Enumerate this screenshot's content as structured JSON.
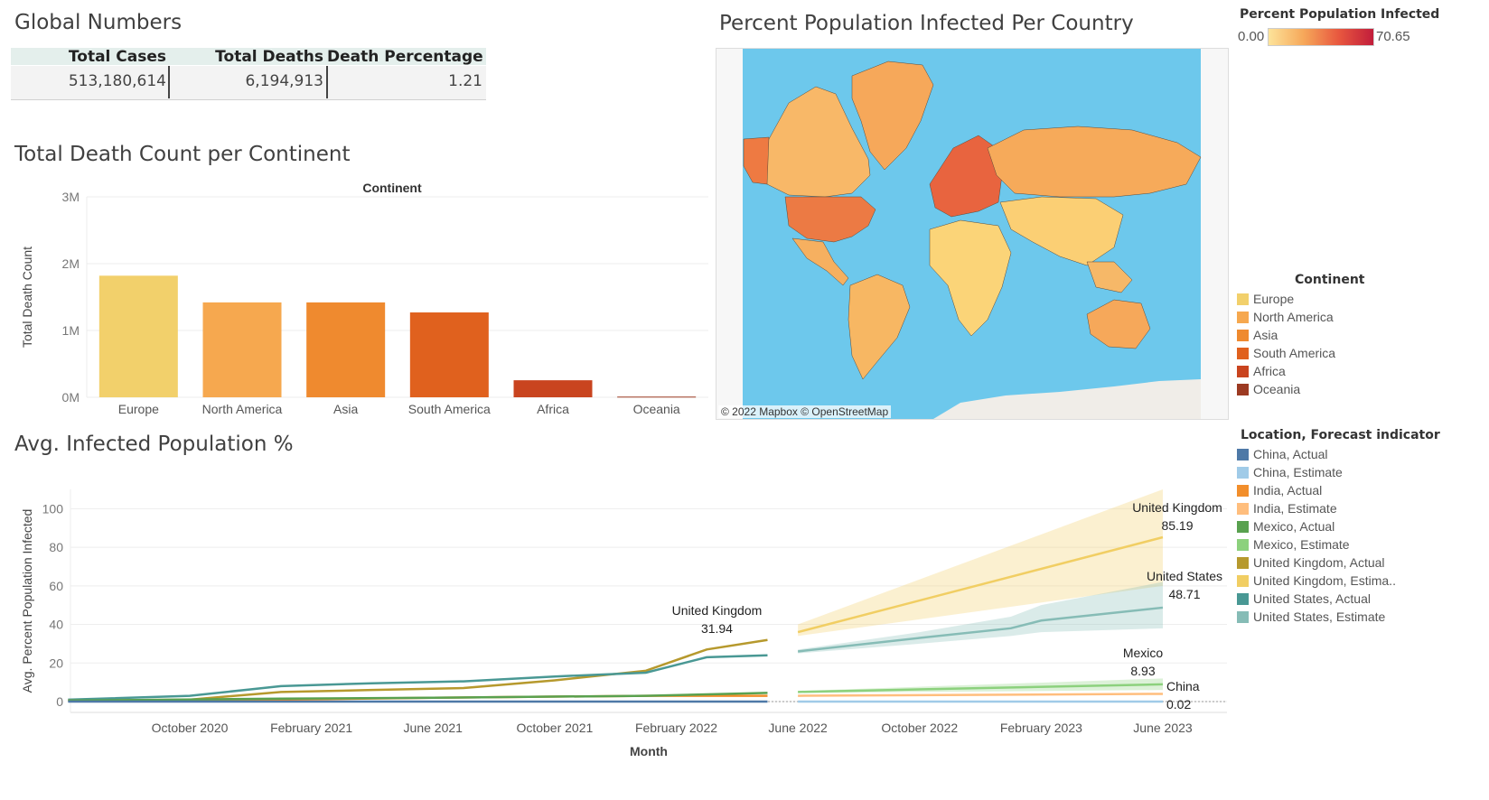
{
  "global_numbers": {
    "title": "Global Numbers",
    "headers": [
      "Total Cases",
      "Total Deaths",
      "Death Percentage"
    ],
    "values": [
      "513,180,614",
      "6,194,913",
      "1.21"
    ]
  },
  "colors": {
    "europe": "#f2d06b",
    "north_america": "#f6a84f",
    "asia": "#ef8a2f",
    "south_america": "#e0611e",
    "africa": "#c9441f",
    "oceania": "#9c3a22",
    "china_actual": "#4e79a7",
    "china_estimate": "#a0cbe8",
    "india_actual": "#f28e2b",
    "india_estimate": "#ffbe7d",
    "mexico_actual": "#59a14f",
    "mexico_estimate": "#8cd17d",
    "uk_actual": "#b6992d",
    "uk_estimate": "#f1ce63",
    "us_actual": "#499894",
    "us_estimate": "#86bcb6",
    "ocean": "#6dc8ec"
  },
  "map": {
    "title": "Percent Population Infected Per Country",
    "attribution": "© 2022 Mapbox © OpenStreetMap",
    "color_legend": {
      "title": "Percent Population Infected",
      "min": "0.00",
      "max": "70.65"
    }
  },
  "continent_legend": {
    "title": "Continent",
    "items": [
      "Europe",
      "North America",
      "Asia",
      "South America",
      "Africa",
      "Oceania"
    ]
  },
  "location_legend": {
    "title": "Location, Forecast indicator",
    "items": [
      "China, Actual",
      "China, Estimate",
      "India, Actual",
      "India, Estimate",
      "Mexico, Actual",
      "Mexico, Estimate",
      "United Kingdom, Actual",
      "United Kingdom, Estima..",
      "United States, Actual",
      "United States, Estimate"
    ]
  },
  "chart_data": [
    {
      "type": "bar",
      "title": "Total Death Count per Continent",
      "xlabel": "Continent",
      "ylabel": "Total Death Count",
      "categories": [
        "Europe",
        "North America",
        "Asia",
        "South America",
        "Africa",
        "Oceania"
      ],
      "values": [
        1820000,
        1420000,
        1420000,
        1270000,
        255000,
        10000
      ],
      "ylim": [
        0,
        3000000
      ],
      "yticks": [
        0,
        1000000,
        2000000,
        3000000
      ],
      "ytick_labels": [
        "0M",
        "1M",
        "2M",
        "3M"
      ],
      "grid": true
    },
    {
      "type": "line",
      "title": "Avg. Infected Population %",
      "xlabel": "Month",
      "ylabel": "Avg. Percent Population Infected",
      "ylim": [
        0,
        110
      ],
      "yticks": [
        0,
        20,
        40,
        60,
        80,
        100
      ],
      "xtick_labels": [
        "October 2020",
        "February 2021",
        "June 2021",
        "October 2021",
        "February 2022",
        "June 2022",
        "October 2022",
        "February 2023",
        "June 2023"
      ],
      "xtick_dates": [
        "2020-10",
        "2021-02",
        "2021-06",
        "2021-10",
        "2022-02",
        "2022-06",
        "2022-10",
        "2023-02",
        "2023-06"
      ],
      "series": [
        {
          "name": "United Kingdom, Actual",
          "x": [
            "2020-06",
            "2020-10",
            "2021-01",
            "2021-04",
            "2021-07",
            "2021-10",
            "2022-01",
            "2022-03",
            "2022-05"
          ],
          "values": [
            0.5,
            1.0,
            5,
            6,
            7,
            11,
            16,
            27,
            31.94
          ]
        },
        {
          "name": "United States, Actual",
          "x": [
            "2020-06",
            "2020-10",
            "2021-01",
            "2021-04",
            "2021-07",
            "2021-10",
            "2022-01",
            "2022-03",
            "2022-05"
          ],
          "values": [
            1,
            3,
            8,
            9.5,
            10.5,
            13,
            15,
            23,
            24
          ]
        },
        {
          "name": "India, Actual",
          "x": [
            "2020-06",
            "2021-01",
            "2021-06",
            "2022-01",
            "2022-05"
          ],
          "values": [
            0.5,
            1,
            2,
            3,
            3
          ]
        },
        {
          "name": "Mexico, Actual",
          "x": [
            "2020-06",
            "2021-01",
            "2021-06",
            "2022-01",
            "2022-05"
          ],
          "values": [
            0.5,
            1.5,
            2,
            3,
            4.5
          ]
        },
        {
          "name": "China, Actual",
          "x": [
            "2020-06",
            "2022-05"
          ],
          "values": [
            0,
            0
          ]
        },
        {
          "name": "United Kingdom, Estima..",
          "x": [
            "2022-06",
            "2023-06"
          ],
          "values": [
            36,
            85.19
          ],
          "band_low": [
            34,
            60
          ],
          "band_high": [
            40,
            110
          ]
        },
        {
          "name": "United States, Estimate",
          "x": [
            "2022-06",
            "2022-10",
            "2023-01",
            "2023-02",
            "2023-06"
          ],
          "values": [
            26,
            33,
            38,
            42,
            48.71
          ],
          "band_low": [
            25,
            30,
            34,
            36,
            38
          ],
          "band_high": [
            27,
            36,
            44,
            50,
            62
          ]
        },
        {
          "name": "India, Estimate",
          "x": [
            "2022-06",
            "2023-06"
          ],
          "values": [
            3,
            4
          ]
        },
        {
          "name": "Mexico, Estimate",
          "x": [
            "2022-06",
            "2023-06"
          ],
          "values": [
            5,
            8.93
          ],
          "band_low": [
            4.5,
            6
          ],
          "band_high": [
            5.5,
            12
          ]
        },
        {
          "name": "China, Estimate",
          "x": [
            "2022-06",
            "2023-06"
          ],
          "values": [
            0.02,
            0.02
          ]
        }
      ],
      "annotations": [
        {
          "series": "United Kingdom, Actual",
          "label": "United Kingdom",
          "value": "31.94"
        },
        {
          "series": "United Kingdom, Estima..",
          "label": "United Kingdom",
          "value": "85.19"
        },
        {
          "series": "United States, Estimate",
          "label": "United States",
          "value": "48.71"
        },
        {
          "series": "Mexico, Estimate",
          "label": "Mexico",
          "value": "8.93"
        },
        {
          "series": "China, Estimate",
          "label": "China",
          "value": "0.02"
        }
      ],
      "grid": true
    }
  ]
}
